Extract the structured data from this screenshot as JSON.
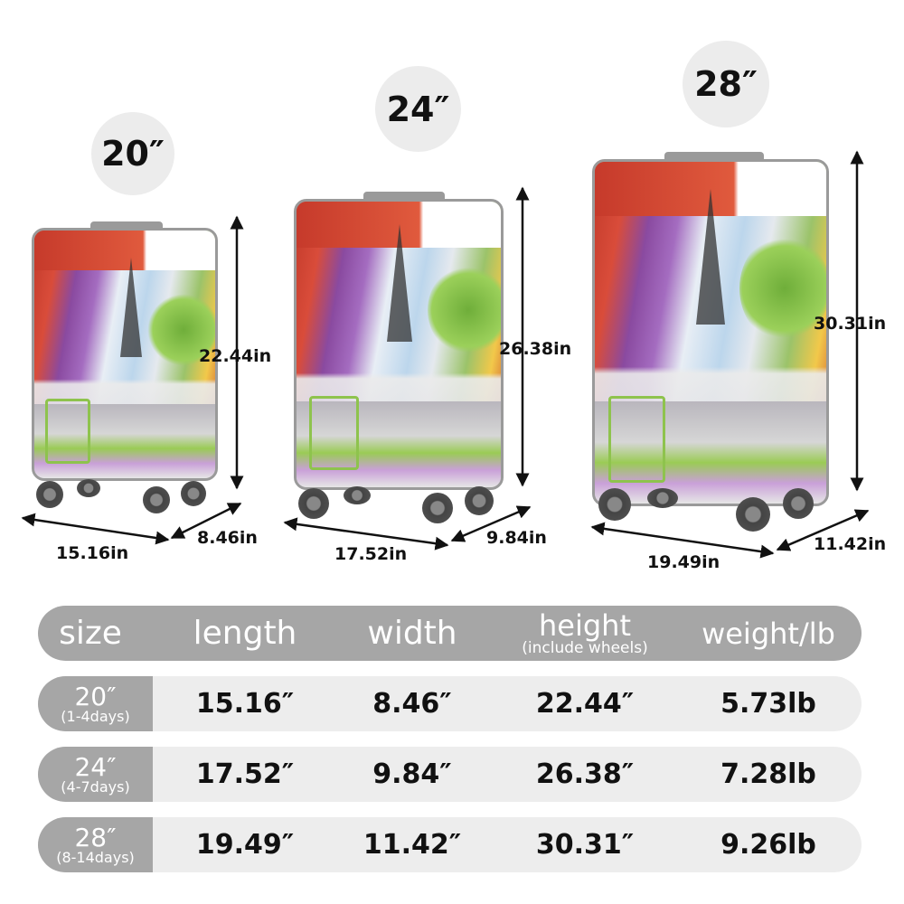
{
  "suitcases": [
    {
      "size": "20″",
      "height": "22.44in",
      "length": "15.16in",
      "depth": "8.46in"
    },
    {
      "size": "24″",
      "height": "26.38in",
      "length": "17.52in",
      "depth": "9.84in"
    },
    {
      "size": "28″",
      "height": "30.31in",
      "length": "19.49in",
      "depth": "11.42in"
    }
  ],
  "table": {
    "headers": {
      "size": "size",
      "length": "length",
      "width": "width",
      "height": "height",
      "height_note": "(include wheels)",
      "weight": "weight/lb"
    },
    "rows": [
      {
        "size": "20″",
        "days": "(1-4days)",
        "length": "15.16″",
        "width": "8.46″",
        "height": "22.44″",
        "weight": "5.73lb"
      },
      {
        "size": "24″",
        "days": "(4-7days)",
        "length": "17.52″",
        "width": "9.84″",
        "height": "26.38″",
        "weight": "7.28lb"
      },
      {
        "size": "28″",
        "days": "(8-14days)",
        "length": "19.49″",
        "width": "11.42″",
        "height": "30.31″",
        "weight": "9.26lb"
      }
    ]
  },
  "colors": {
    "header_bg": "#a6a6a6",
    "row_bg": "#ededed",
    "badge_bg": "#ececec"
  }
}
